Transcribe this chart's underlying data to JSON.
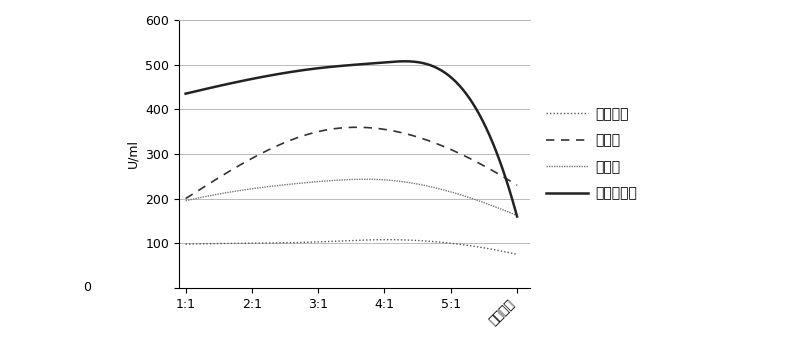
{
  "x_labels": [
    "1:1",
    "2:1",
    "3:1",
    "4:1",
    "5:1",
    "第一发酵"
  ],
  "x_positions": [
    0,
    1,
    2,
    3,
    4,
    5
  ],
  "series": [
    {
      "name": "纤维素酶",
      "values": [
        98,
        100,
        103,
        108,
        100,
        75
      ],
      "linestyle": "densely_dotted",
      "color": "#555555",
      "linewidth": 1.0
    },
    {
      "name": "淡粉酶",
      "values": [
        200,
        290,
        350,
        355,
        310,
        230
      ],
      "linestyle": "loosely_dashed",
      "color": "#333333",
      "linewidth": 1.2
    },
    {
      "name": "脂肪酶",
      "values": [
        195,
        222,
        238,
        242,
        215,
        162
      ],
      "linestyle": "densely_dotted2",
      "color": "#777777",
      "linewidth": 1.0
    },
    {
      "name": "中性蛋白酶",
      "values": [
        435,
        468,
        492,
        505,
        472,
        160
      ],
      "linestyle": "solid",
      "color": "#222222",
      "linewidth": 1.8
    }
  ],
  "ylim": [
    0,
    600
  ],
  "yticks": [
    0,
    100,
    200,
    300,
    400,
    500,
    600
  ],
  "ylabel": "U/ml",
  "background_color": "#ffffff",
  "grid_color": "#bbbbbb",
  "figsize": [
    8.05,
    3.43
  ],
  "dpi": 100,
  "legend_fontsize": 10,
  "tick_fontsize": 9
}
